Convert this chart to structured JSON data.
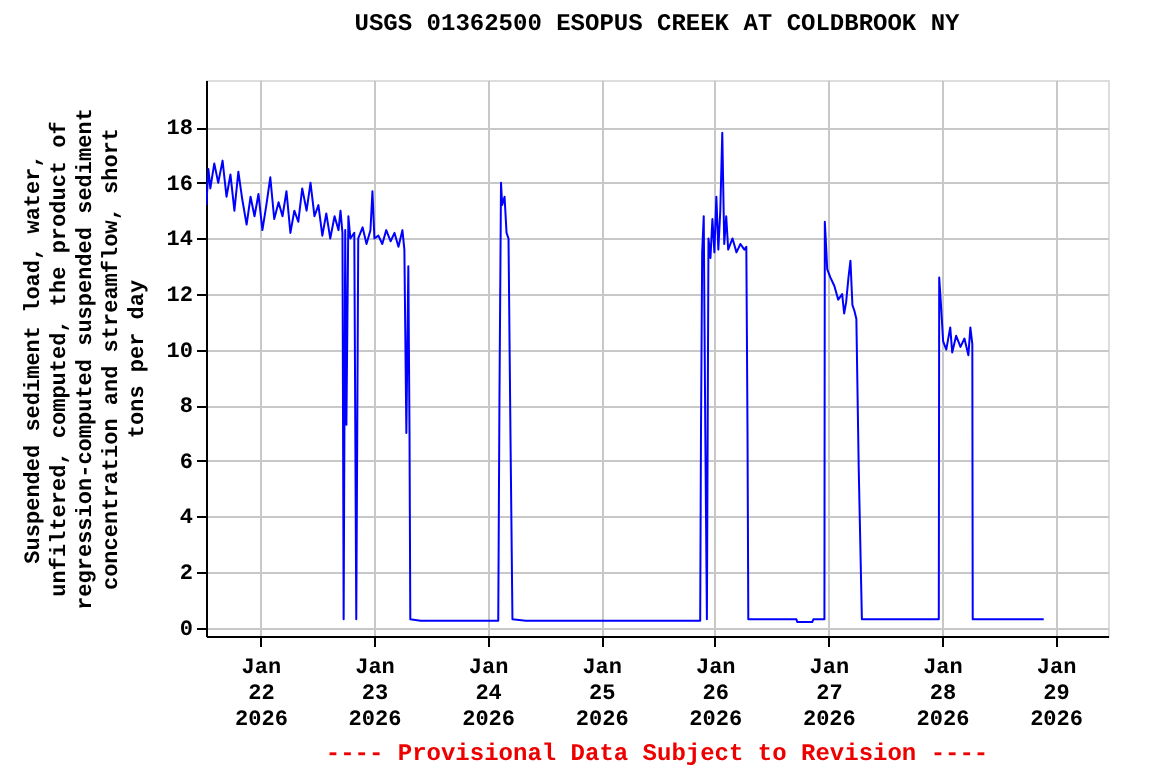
{
  "chart_data": {
    "type": "line",
    "title": "USGS 01362500 ESOPUS CREEK AT COLDBROOK NY",
    "ylabel": "Suspended sediment load, water, unfiltered, computed, the product of regression-computed suspended sediment concentration and streamflow, short tons per day",
    "annotations": [
      "---- Provisional Data Subject to Revision ----"
    ],
    "x": [
      "2026-01-21T12:35",
      "2026-01-21T13:00",
      "2026-01-21T13:25",
      "2026-01-21T14:15",
      "2026-01-21T15:05",
      "2026-01-21T16:00",
      "2026-01-21T16:50",
      "2026-01-21T17:40",
      "2026-01-21T18:30",
      "2026-01-21T19:20",
      "2026-01-21T20:10",
      "2026-01-21T21:05",
      "2026-01-21T21:55",
      "2026-01-21T22:45",
      "2026-01-21T23:35",
      "2026-01-22T00:25",
      "2026-01-22T01:15",
      "2026-01-22T02:05",
      "2026-01-22T02:55",
      "2026-01-22T03:50",
      "2026-01-22T04:40",
      "2026-01-22T05:30",
      "2026-01-22T06:20",
      "2026-01-22T07:10",
      "2026-01-22T08:00",
      "2026-01-22T08:50",
      "2026-01-22T09:45",
      "2026-01-22T10:35",
      "2026-01-22T11:25",
      "2026-01-22T12:15",
      "2026-01-22T13:05",
      "2026-01-22T13:55",
      "2026-01-22T14:45",
      "2026-01-22T15:40",
      "2026-01-22T16:30",
      "2026-01-22T16:55",
      "2026-01-22T17:20",
      "2026-01-22T17:35",
      "2026-01-22T17:55",
      "2026-01-22T18:10",
      "2026-01-22T18:35",
      "2026-01-22T19:00",
      "2026-01-22T19:50",
      "2026-01-22T20:15",
      "2026-01-22T20:40",
      "2026-01-22T21:35",
      "2026-01-22T22:25",
      "2026-01-22T23:15",
      "2026-01-22T23:40",
      "2026-01-23T00:05",
      "2026-01-23T00:55",
      "2026-01-23T01:45",
      "2026-01-23T02:35",
      "2026-01-23T03:30",
      "2026-01-23T04:20",
      "2026-01-23T05:10",
      "2026-01-23T06:00",
      "2026-01-23T06:25",
      "2026-01-23T06:50",
      "2026-01-23T07:15",
      "2026-01-23T07:30",
      "2026-01-23T07:40",
      "2026-01-23T09:50",
      "2026-01-24T02:15",
      "2026-01-24T02:30",
      "2026-01-24T02:50",
      "2026-01-24T03:05",
      "2026-01-24T03:35",
      "2026-01-24T04:00",
      "2026-01-24T04:25",
      "2026-01-24T04:50",
      "2026-01-24T05:15",
      "2026-01-24T08:05",
      "2026-01-25T20:55",
      "2026-01-25T21:05",
      "2026-01-25T21:20",
      "2026-01-25T21:40",
      "2026-01-25T22:00",
      "2026-01-25T22:20",
      "2026-01-25T22:40",
      "2026-01-25T23:05",
      "2026-01-25T23:30",
      "2026-01-25T23:55",
      "2026-01-26T00:20",
      "2026-01-26T00:45",
      "2026-01-26T01:10",
      "2026-01-26T01:35",
      "2026-01-26T02:00",
      "2026-01-26T02:25",
      "2026-01-26T02:50",
      "2026-01-26T03:45",
      "2026-01-26T04:35",
      "2026-01-26T05:25",
      "2026-01-26T06:15",
      "2026-01-26T06:40",
      "2026-01-26T06:55",
      "2026-01-26T07:05",
      "2026-01-26T17:15",
      "2026-01-26T17:25",
      "2026-01-26T20:35",
      "2026-01-26T20:50",
      "2026-01-26T23:10",
      "2026-01-26T23:15",
      "2026-01-26T23:35",
      "2026-01-26T23:45",
      "2026-01-27T00:25",
      "2026-01-27T01:15",
      "2026-01-27T02:05",
      "2026-01-27T02:55",
      "2026-01-27T03:20",
      "2026-01-27T03:45",
      "2026-01-27T04:15",
      "2026-01-27T04:40",
      "2026-01-27T05:05",
      "2026-01-27T05:30",
      "2026-01-27T05:55",
      "2026-01-27T06:25",
      "2026-01-27T07:05",
      "2026-01-27T23:20",
      "2026-01-27T23:25",
      "2026-01-27T23:50",
      "2026-01-28T00:15",
      "2026-01-28T00:55",
      "2026-01-28T01:45",
      "2026-01-28T02:10",
      "2026-01-28T03:00",
      "2026-01-28T03:55",
      "2026-01-28T04:45",
      "2026-01-28T05:35",
      "2026-01-28T06:00",
      "2026-01-28T06:25",
      "2026-01-28T06:30",
      "2026-01-28T21:30"
    ],
    "series": [
      {
        "color": "#0000ff",
        "values": [
          15.2,
          16.5,
          15.8,
          16.7,
          16.0,
          16.8,
          15.5,
          16.3,
          15.0,
          16.4,
          15.4,
          14.5,
          15.5,
          14.8,
          15.6,
          14.3,
          15.2,
          16.2,
          14.7,
          15.3,
          14.8,
          15.7,
          14.2,
          15.0,
          14.6,
          15.8,
          15.0,
          16.0,
          14.8,
          15.2,
          14.1,
          14.9,
          14.0,
          14.8,
          14.3,
          15.0,
          14.2,
          0.3,
          14.3,
          7.3,
          14.8,
          14.0,
          14.2,
          0.3,
          14.0,
          14.4,
          13.8,
          14.3,
          15.7,
          14.0,
          14.1,
          13.8,
          14.3,
          13.9,
          14.2,
          13.7,
          14.3,
          13.6,
          7.0,
          13.0,
          7.0,
          0.3,
          0.25,
          0.25,
          8.1,
          16.0,
          15.2,
          15.5,
          14.2,
          14.0,
          6.9,
          0.3,
          0.25,
          0.25,
          6.9,
          13.5,
          14.8,
          7.0,
          0.3,
          14.0,
          13.3,
          14.7,
          13.5,
          15.5,
          13.6,
          15.0,
          17.8,
          13.8,
          14.8,
          13.6,
          14.0,
          13.5,
          13.8,
          13.6,
          13.7,
          7.0,
          0.3,
          0.3,
          0.2,
          0.2,
          0.3,
          0.3,
          14.6,
          13.5,
          12.9,
          12.6,
          12.3,
          11.8,
          12.0,
          11.3,
          11.7,
          12.6,
          13.2,
          11.6,
          11.4,
          11.1,
          5.7,
          0.3,
          0.3,
          12.6,
          11.5,
          10.3,
          10.0,
          10.8,
          9.9,
          10.5,
          10.1,
          10.4,
          9.8,
          10.8,
          10.2,
          0.3,
          0.3
        ]
      }
    ],
    "xlim": [
      "2026-01-21T12:30",
      "2026-01-29T11:05"
    ],
    "xticks": [
      {
        "value": "2026-01-22",
        "label": "Jan 22 2026"
      },
      {
        "value": "2026-01-23",
        "label": "Jan 23 2026"
      },
      {
        "value": "2026-01-24",
        "label": "Jan 24 2026"
      },
      {
        "value": "2026-01-25",
        "label": "Jan 25 2026"
      },
      {
        "value": "2026-01-26",
        "label": "Jan 26 2026"
      },
      {
        "value": "2026-01-27",
        "label": "Jan 27 2026"
      },
      {
        "value": "2026-01-28",
        "label": "Jan 28 2026"
      },
      {
        "value": "2026-01-29",
        "label": "Jan 29 2026"
      }
    ],
    "ylim": [
      -0.3,
      19.7
    ],
    "yticks": [
      0,
      2,
      4,
      6,
      8,
      10,
      12,
      14,
      16,
      18
    ],
    "grid": true,
    "marker": "none"
  }
}
